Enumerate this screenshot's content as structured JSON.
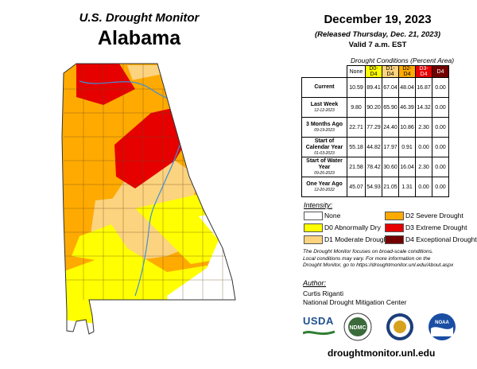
{
  "header": {
    "title": "U.S. Drought Monitor",
    "state": "Alabama"
  },
  "report": {
    "date": "December 19, 2023",
    "released": "(Released Thursday, Dec. 21, 2023)",
    "valid": "Valid 7 a.m. EST"
  },
  "conditions": {
    "caption": "Drought Conditions (Percent Area)",
    "columns": [
      "None",
      "D0-D4",
      "D1-D4",
      "D2-D4",
      "D3-D4",
      "D4"
    ],
    "rows": [
      {
        "label": "Current",
        "sub": "",
        "values": [
          "10.59",
          "89.41",
          "67.04",
          "48.04",
          "16.87",
          "0.00"
        ]
      },
      {
        "label": "Last Week",
        "sub": "12-12-2023",
        "values": [
          "9.80",
          "90.20",
          "65.90",
          "46.39",
          "14.32",
          "0.00"
        ]
      },
      {
        "label": "3 Months Ago",
        "sub": "09-19-2023",
        "values": [
          "22.71",
          "77.29",
          "24.40",
          "10.86",
          "2.30",
          "0.00"
        ]
      },
      {
        "label": "Start of Calendar Year",
        "sub": "01-03-2023",
        "values": [
          "55.18",
          "44.82",
          "17.97",
          "0.91",
          "0.00",
          "0.00"
        ]
      },
      {
        "label": "Start of Water Year",
        "sub": "09-26-2023",
        "values": [
          "21.58",
          "78.42",
          "30.60",
          "16.04",
          "2.30",
          "0.00"
        ]
      },
      {
        "label": "One Year Ago",
        "sub": "12-20-2022",
        "values": [
          "45.07",
          "54.93",
          "21.05",
          "1.31",
          "0.00",
          "0.00"
        ]
      }
    ]
  },
  "legend": {
    "title": "Intensity:",
    "items": [
      {
        "label": "None",
        "color": "#ffffff"
      },
      {
        "label": "D0 Abnormally Dry",
        "color": "#ffff00"
      },
      {
        "label": "D1 Moderate Drought",
        "color": "#fcd37f"
      },
      {
        "label": "D2 Severe Drought",
        "color": "#ffaa00"
      },
      {
        "label": "D3 Extreme Drought",
        "color": "#e60000"
      },
      {
        "label": "D4 Exceptional Drought",
        "color": "#730000"
      }
    ]
  },
  "note": {
    "line1": "The Drought Monitor focuses on broad-scale conditions.",
    "line2": "Local conditions may vary. For more information on the",
    "line3": "Drought Monitor, go to https://droughtmonitor.unl.edu/About.aspx"
  },
  "author": {
    "title": "Author:",
    "name": "Curtis Riganti",
    "org": "National Drought Mitigation Center"
  },
  "logos": {
    "usda": "USDA",
    "ndmc": "NDMC",
    "noaa": "NOAA"
  },
  "footer": {
    "url": "droughtmonitor.unl.edu"
  }
}
